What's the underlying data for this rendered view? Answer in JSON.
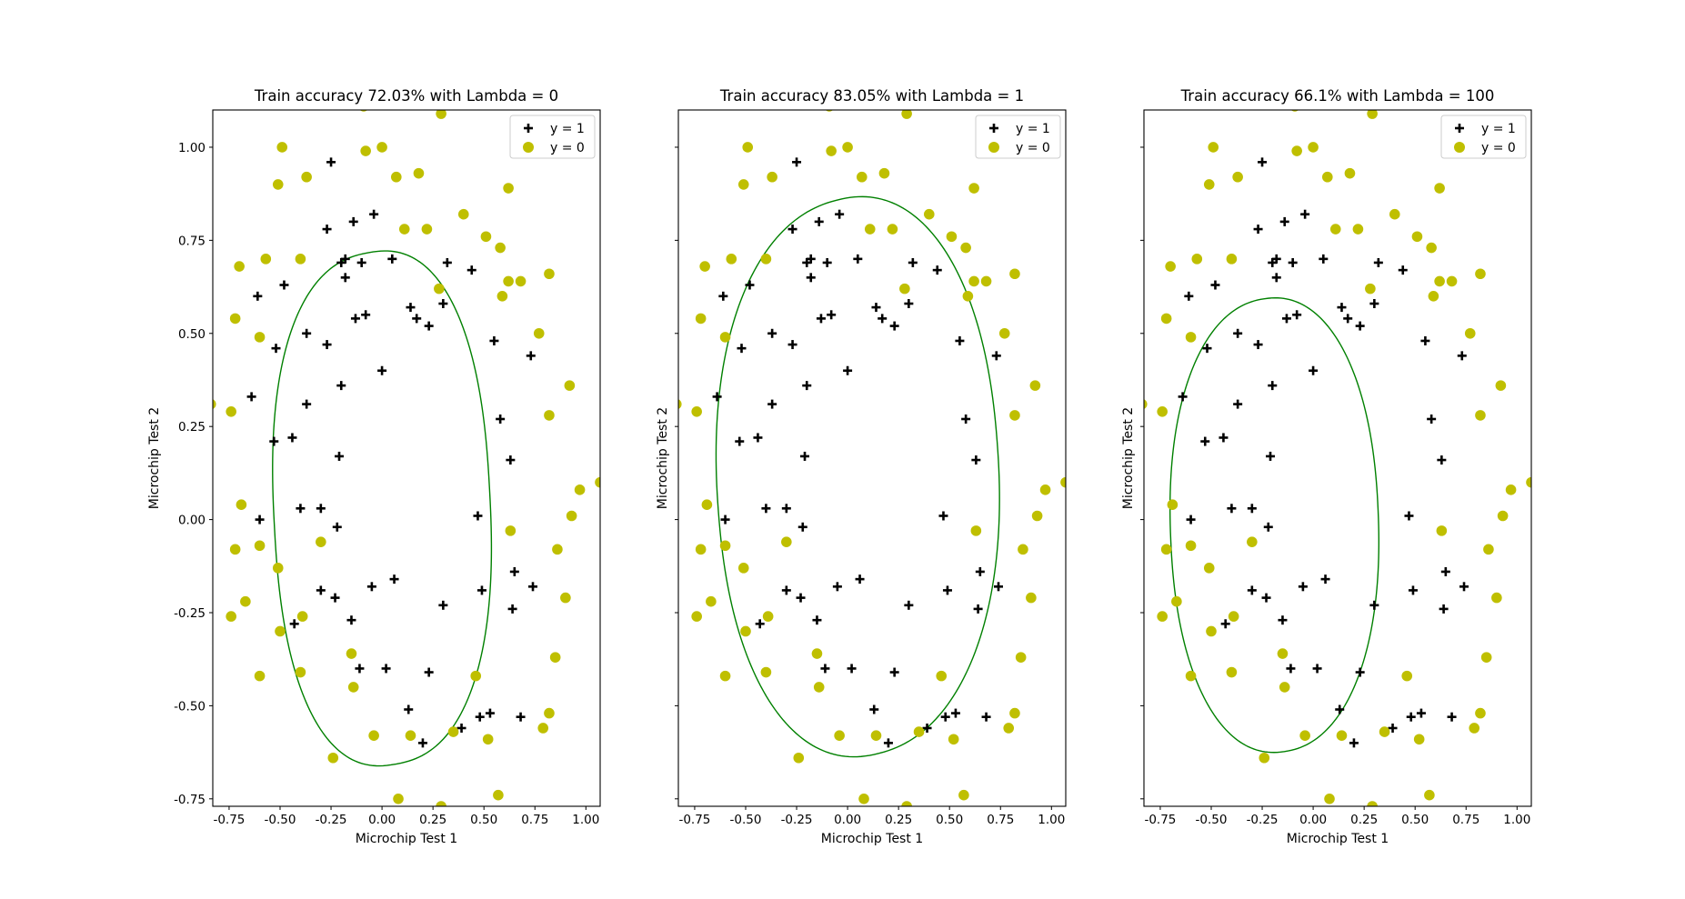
{
  "figure": {
    "background": "#ffffff"
  },
  "colors": {
    "positive": "#000000",
    "negative": "#bfbf00",
    "boundary": "#008000"
  },
  "chart_data": [
    {
      "type": "scatter",
      "title": "Train accuracy 72.03% with Lambda = 0",
      "xlabel": "Microchip Test 1",
      "ylabel": "Microchip Test 2",
      "xlim": [
        -0.83,
        1.07
      ],
      "ylim": [
        -0.77,
        1.1
      ],
      "xticks": [
        "-0.75",
        "-0.50",
        "-0.25",
        "0.00",
        "0.25",
        "0.50",
        "0.75",
        "1.00"
      ],
      "yticks": [
        "-0.75",
        "-0.50",
        "-0.25",
        "0.00",
        "0.25",
        "0.50",
        "0.75",
        "1.00"
      ],
      "legend": {
        "placement": "top-right",
        "entries": [
          "y = 1",
          "y = 0"
        ]
      },
      "boundary": {
        "cx": 0.0,
        "cy": 0.03,
        "rx": 0.53,
        "ry": 0.69,
        "power": 2.4,
        "rot": 0.1
      }
    },
    {
      "type": "scatter",
      "title": "Train accuracy 83.05% with Lambda = 1",
      "xlabel": "Microchip Test 1",
      "ylabel": "Microchip Test 2",
      "xlim": [
        -0.83,
        1.07
      ],
      "ylim": [
        -0.77,
        1.1
      ],
      "xticks": [
        "-0.75",
        "-0.50",
        "-0.25",
        "0.00",
        "0.25",
        "0.50",
        "0.75",
        "1.00"
      ],
      "yticks": [],
      "legend": {
        "placement": "top-right",
        "entries": [
          "y = 1",
          "y = 0"
        ]
      },
      "boundary": {
        "cx": 0.05,
        "cy": 0.115,
        "rx": 0.69,
        "ry": 0.75,
        "power": 2.2,
        "rot": 0.14
      }
    },
    {
      "type": "scatter",
      "title": "Train accuracy 66.1% with Lambda = 100",
      "xlabel": "Microchip Test 1",
      "ylabel": "Microchip Test 2",
      "xlim": [
        -0.83,
        1.07
      ],
      "ylim": [
        -0.77,
        1.1
      ],
      "xticks": [
        "-0.75",
        "-0.50",
        "-0.25",
        "0.00",
        "0.25",
        "0.50",
        "0.75",
        "1.00"
      ],
      "yticks": [],
      "legend": {
        "placement": "top-right",
        "entries": [
          "y = 1",
          "y = 0"
        ]
      },
      "boundary": {
        "cx": -0.19,
        "cy": -0.015,
        "rx": 0.51,
        "ry": 0.61,
        "power": 2.2,
        "rot": 0.08
      }
    }
  ],
  "points": {
    "positive": [
      [
        -0.25,
        0.96
      ],
      [
        -0.14,
        0.8
      ],
      [
        -0.27,
        0.78
      ],
      [
        -0.04,
        0.82
      ],
      [
        -0.2,
        0.69
      ],
      [
        -0.18,
        0.7
      ],
      [
        -0.1,
        0.69
      ],
      [
        0.05,
        0.7
      ],
      [
        0.32,
        0.69
      ],
      [
        0.44,
        0.67
      ],
      [
        -0.18,
        0.65
      ],
      [
        -0.48,
        0.63
      ],
      [
        -0.61,
        0.6
      ],
      [
        0.3,
        0.58
      ],
      [
        0.14,
        0.57
      ],
      [
        -0.13,
        0.54
      ],
      [
        -0.08,
        0.55
      ],
      [
        0.17,
        0.54
      ],
      [
        0.23,
        0.52
      ],
      [
        -0.37,
        0.5
      ],
      [
        -0.27,
        0.47
      ],
      [
        -0.52,
        0.46
      ],
      [
        0.55,
        0.48
      ],
      [
        0.73,
        0.44
      ],
      [
        0.0,
        0.4
      ],
      [
        -0.2,
        0.36
      ],
      [
        -0.64,
        0.33
      ],
      [
        -0.37,
        0.31
      ],
      [
        0.58,
        0.27
      ],
      [
        -0.44,
        0.22
      ],
      [
        -0.53,
        0.21
      ],
      [
        -0.21,
        0.17
      ],
      [
        0.63,
        0.16
      ],
      [
        -0.4,
        0.03
      ],
      [
        -0.3,
        0.03
      ],
      [
        -0.6,
        0.0
      ],
      [
        0.47,
        0.01
      ],
      [
        -0.22,
        -0.02
      ],
      [
        0.65,
        -0.14
      ],
      [
        -0.3,
        -0.19
      ],
      [
        0.49,
        -0.19
      ],
      [
        0.74,
        -0.18
      ],
      [
        -0.05,
        -0.18
      ],
      [
        0.06,
        -0.16
      ],
      [
        -0.23,
        -0.21
      ],
      [
        0.3,
        -0.23
      ],
      [
        0.64,
        -0.24
      ],
      [
        -0.43,
        -0.28
      ],
      [
        -0.15,
        -0.27
      ],
      [
        -0.11,
        -0.4
      ],
      [
        0.02,
        -0.4
      ],
      [
        0.23,
        -0.41
      ],
      [
        0.13,
        -0.51
      ],
      [
        0.53,
        -0.52
      ],
      [
        0.48,
        -0.53
      ],
      [
        0.68,
        -0.53
      ],
      [
        0.39,
        -0.56
      ],
      [
        0.2,
        -0.6
      ]
    ],
    "negative": [
      [
        -0.09,
        1.11
      ],
      [
        0.29,
        1.09
      ],
      [
        -0.49,
        1.0
      ],
      [
        -0.08,
        0.99
      ],
      [
        0.0,
        1.0
      ],
      [
        -0.37,
        0.92
      ],
      [
        -0.51,
        0.9
      ],
      [
        0.07,
        0.92
      ],
      [
        0.18,
        0.93
      ],
      [
        0.62,
        0.89
      ],
      [
        0.4,
        0.82
      ],
      [
        0.11,
        0.78
      ],
      [
        0.22,
        0.78
      ],
      [
        0.51,
        0.76
      ],
      [
        -0.57,
        0.7
      ],
      [
        -0.4,
        0.7
      ],
      [
        0.58,
        0.73
      ],
      [
        -0.7,
        0.68
      ],
      [
        0.82,
        0.66
      ],
      [
        0.62,
        0.64
      ],
      [
        0.68,
        0.64
      ],
      [
        0.28,
        0.62
      ],
      [
        0.59,
        0.6
      ],
      [
        -0.72,
        0.54
      ],
      [
        -0.6,
        0.49
      ],
      [
        0.77,
        0.5
      ],
      [
        0.92,
        0.36
      ],
      [
        -0.84,
        0.31
      ],
      [
        -0.74,
        0.29
      ],
      [
        0.82,
        0.28
      ],
      [
        0.97,
        0.08
      ],
      [
        1.07,
        0.1
      ],
      [
        0.93,
        0.01
      ],
      [
        -0.69,
        0.04
      ],
      [
        0.63,
        -0.03
      ],
      [
        -0.3,
        -0.06
      ],
      [
        -0.72,
        -0.08
      ],
      [
        -0.6,
        -0.07
      ],
      [
        0.86,
        -0.08
      ],
      [
        -0.51,
        -0.13
      ],
      [
        0.9,
        -0.21
      ],
      [
        -0.67,
        -0.22
      ],
      [
        -0.74,
        -0.26
      ],
      [
        -0.39,
        -0.26
      ],
      [
        -0.5,
        -0.3
      ],
      [
        0.85,
        -0.37
      ],
      [
        -0.15,
        -0.36
      ],
      [
        -0.4,
        -0.41
      ],
      [
        -0.6,
        -0.42
      ],
      [
        0.46,
        -0.42
      ],
      [
        -0.14,
        -0.45
      ],
      [
        0.82,
        -0.52
      ],
      [
        0.79,
        -0.56
      ],
      [
        -0.04,
        -0.58
      ],
      [
        0.14,
        -0.58
      ],
      [
        0.35,
        -0.57
      ],
      [
        0.52,
        -0.59
      ],
      [
        -0.24,
        -0.64
      ],
      [
        0.57,
        -0.74
      ],
      [
        0.08,
        -0.75
      ],
      [
        0.29,
        -0.77
      ]
    ]
  }
}
